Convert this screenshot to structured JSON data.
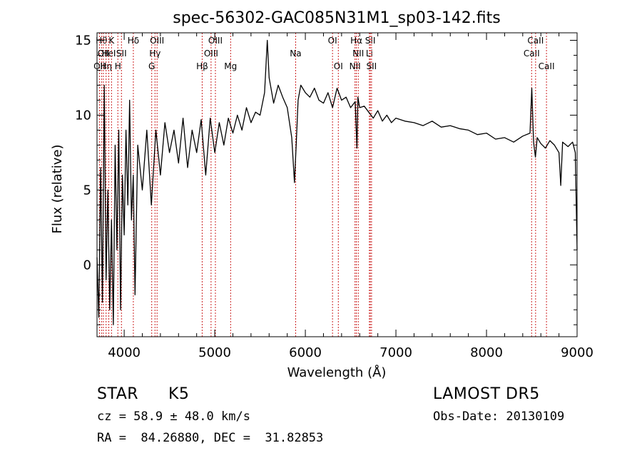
{
  "chart_data": {
    "type": "line",
    "title": "spec-56302-GAC085N31M1_sp03-142.fits",
    "xlabel": "Wavelength (Å)",
    "ylabel": "Flux (relative)",
    "xlim": [
      3700,
      9000
    ],
    "ylim": [
      -4.8,
      15.5
    ],
    "xticks": [
      4000,
      5000,
      6000,
      7000,
      8000,
      9000
    ],
    "yticks": [
      0,
      5,
      10,
      15
    ],
    "grid": false,
    "line_color": "#000000",
    "marker_color": "#cc2222",
    "series": [
      {
        "x": [
          3700,
          3720,
          3740,
          3760,
          3780,
          3800,
          3820,
          3840,
          3860,
          3880,
          3900,
          3920,
          3940,
          3960,
          3980,
          4000,
          4020,
          4040,
          4060,
          4080,
          4100,
          4120,
          4150,
          4200,
          4250,
          4300,
          4350,
          4400,
          4450,
          4500,
          4550,
          4600,
          4650,
          4700,
          4750,
          4800,
          4850,
          4900,
          4950,
          5000,
          5050,
          5100,
          5150,
          5200,
          5250,
          5300,
          5350,
          5400,
          5450,
          5500,
          5550,
          5580,
          5600,
          5650,
          5700,
          5750,
          5800,
          5850,
          5880,
          5900,
          5920,
          5950,
          6000,
          6050,
          6100,
          6150,
          6200,
          6250,
          6300,
          6350,
          6400,
          6450,
          6500,
          6550,
          6570,
          6580,
          6600,
          6650,
          6700,
          6750,
          6800,
          6850,
          6900,
          6950,
          7000,
          7100,
          7200,
          7300,
          7400,
          7500,
          7600,
          7700,
          7800,
          7900,
          8000,
          8100,
          8200,
          8300,
          8400,
          8480,
          8500,
          8520,
          8540,
          8560,
          8600,
          8650,
          8700,
          8750,
          8800,
          8820,
          8840,
          8900,
          8950,
          8980,
          9000
        ],
        "y": [
          0.5,
          -3.5,
          6.5,
          -2.5,
          12,
          -1,
          5,
          -3,
          3,
          -4,
          8,
          1,
          9,
          -3,
          6,
          2,
          9,
          4,
          11,
          3,
          6,
          -2,
          8,
          5,
          9,
          4,
          9,
          6,
          9.5,
          7.5,
          9,
          6.8,
          9.8,
          6.5,
          9,
          7.5,
          9.7,
          6,
          9.8,
          7.5,
          9.5,
          8,
          9.8,
          8.8,
          10,
          9,
          10.5,
          9.5,
          10.2,
          10,
          11.5,
          15,
          12.5,
          10.8,
          12,
          11.2,
          10.5,
          8.5,
          5.5,
          8.2,
          11,
          12,
          11.5,
          11.2,
          11.8,
          11,
          10.8,
          11.5,
          10.5,
          11.8,
          11,
          11.2,
          10.5,
          10.9,
          7.8,
          11.2,
          10.5,
          10.6,
          10.2,
          9.8,
          10.3,
          9.6,
          10,
          9.5,
          9.8,
          9.6,
          9.5,
          9.3,
          9.6,
          9.2,
          9.3,
          9.1,
          9,
          8.7,
          8.8,
          8.4,
          8.5,
          8.2,
          8.6,
          8.8,
          11.8,
          8.2,
          7.2,
          8.5,
          8.1,
          7.8,
          8.3,
          8,
          7.5,
          5.3,
          8.2,
          7.9,
          8.2,
          7.5,
          1
        ]
      }
    ],
    "lines": [
      {
        "wave": 3727,
        "label": "OII",
        "row": 3
      },
      {
        "wave": 3750,
        "label": "Hθ",
        "row": 1
      },
      {
        "wave": 3770,
        "label": "OII",
        "row": 2
      },
      {
        "wave": 3800,
        "label": "Hη",
        "row": 3
      },
      {
        "wave": 3830,
        "label": "HeI",
        "row": 2
      },
      {
        "wave": 3860,
        "label": "K",
        "row": 1
      },
      {
        "wave": 3930,
        "label": "H",
        "row": 3
      },
      {
        "wave": 3970,
        "label": "SII",
        "row": 2
      },
      {
        "wave": 4101,
        "label": "Hδ",
        "row": 1
      },
      {
        "wave": 4304,
        "label": "G",
        "row": 3
      },
      {
        "wave": 4340,
        "label": "Hγ",
        "row": 2
      },
      {
        "wave": 4363,
        "label": "OIII",
        "row": 1
      },
      {
        "wave": 4861,
        "label": "Hβ",
        "row": 3
      },
      {
        "wave": 4959,
        "label": "OIII",
        "row": 2
      },
      {
        "wave": 5007,
        "label": "OIII",
        "row": 1
      },
      {
        "wave": 5175,
        "label": "Mg",
        "row": 3
      },
      {
        "wave": 5893,
        "label": "Na",
        "row": 2
      },
      {
        "wave": 6300,
        "label": "OI",
        "row": 1
      },
      {
        "wave": 6364,
        "label": "OI",
        "row": 3
      },
      {
        "wave": 6548,
        "label": "NII",
        "row": 3
      },
      {
        "wave": 6563,
        "label": "Hα",
        "row": 1
      },
      {
        "wave": 6584,
        "label": "NII",
        "row": 2
      },
      {
        "wave": 6707,
        "label": "Li",
        "row": 2
      },
      {
        "wave": 6717,
        "label": "SII",
        "row": 1
      },
      {
        "wave": 6731,
        "label": "SII",
        "row": 3
      },
      {
        "wave": 8498,
        "label": "CaII",
        "row": 2
      },
      {
        "wave": 8542,
        "label": "CaII",
        "row": 1
      },
      {
        "wave": 8662,
        "label": "CaII",
        "row": 3
      }
    ]
  },
  "info": {
    "class": "STAR",
    "subclass": "K5",
    "survey": "LAMOST DR5",
    "cz": "cz = 58.9 ± 48.0 km/s",
    "obs_date": "Obs-Date: 20130109",
    "coords": "RA =  84.26880, DEC =  31.82853"
  }
}
